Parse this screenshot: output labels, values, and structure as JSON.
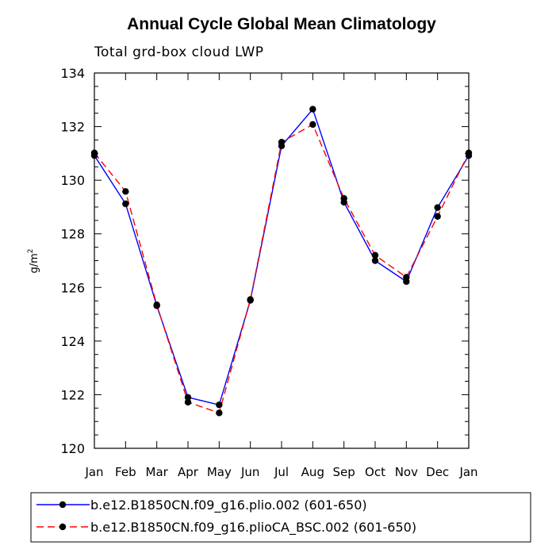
{
  "chart_data": {
    "type": "line",
    "title": "Annual Cycle Global Mean Climatology",
    "subtitle": "Total grd-box cloud LWP",
    "ylabel": "g/m",
    "ylabel_superscript": "2",
    "xlabel": "",
    "categories": [
      "Jan",
      "Feb",
      "Mar",
      "Apr",
      "May",
      "Jun",
      "Jul",
      "Aug",
      "Sep",
      "Oct",
      "Nov",
      "Dec",
      "Jan"
    ],
    "ylim": [
      120,
      134
    ],
    "yticks": [
      120,
      122,
      124,
      126,
      128,
      130,
      132,
      134
    ],
    "legend_position": "bottom",
    "series": [
      {
        "name": "b.e12.B1850CN.f09_g16.plio.002 (601-650)",
        "color": "#0000ff",
        "dash": "solid",
        "values": [
          130.92,
          129.12,
          125.32,
          121.9,
          121.62,
          125.52,
          131.28,
          132.65,
          129.18,
          127.0,
          126.22,
          128.98,
          130.92
        ]
      },
      {
        "name": "b.e12.B1850CN.f09_g16.plioCA_BSC.002 (601-650)",
        "color": "#ff0000",
        "dash": "dashed",
        "values": [
          131.02,
          129.58,
          125.35,
          121.72,
          121.32,
          125.55,
          131.42,
          132.08,
          129.32,
          127.2,
          126.38,
          128.65,
          131.02
        ]
      }
    ]
  }
}
